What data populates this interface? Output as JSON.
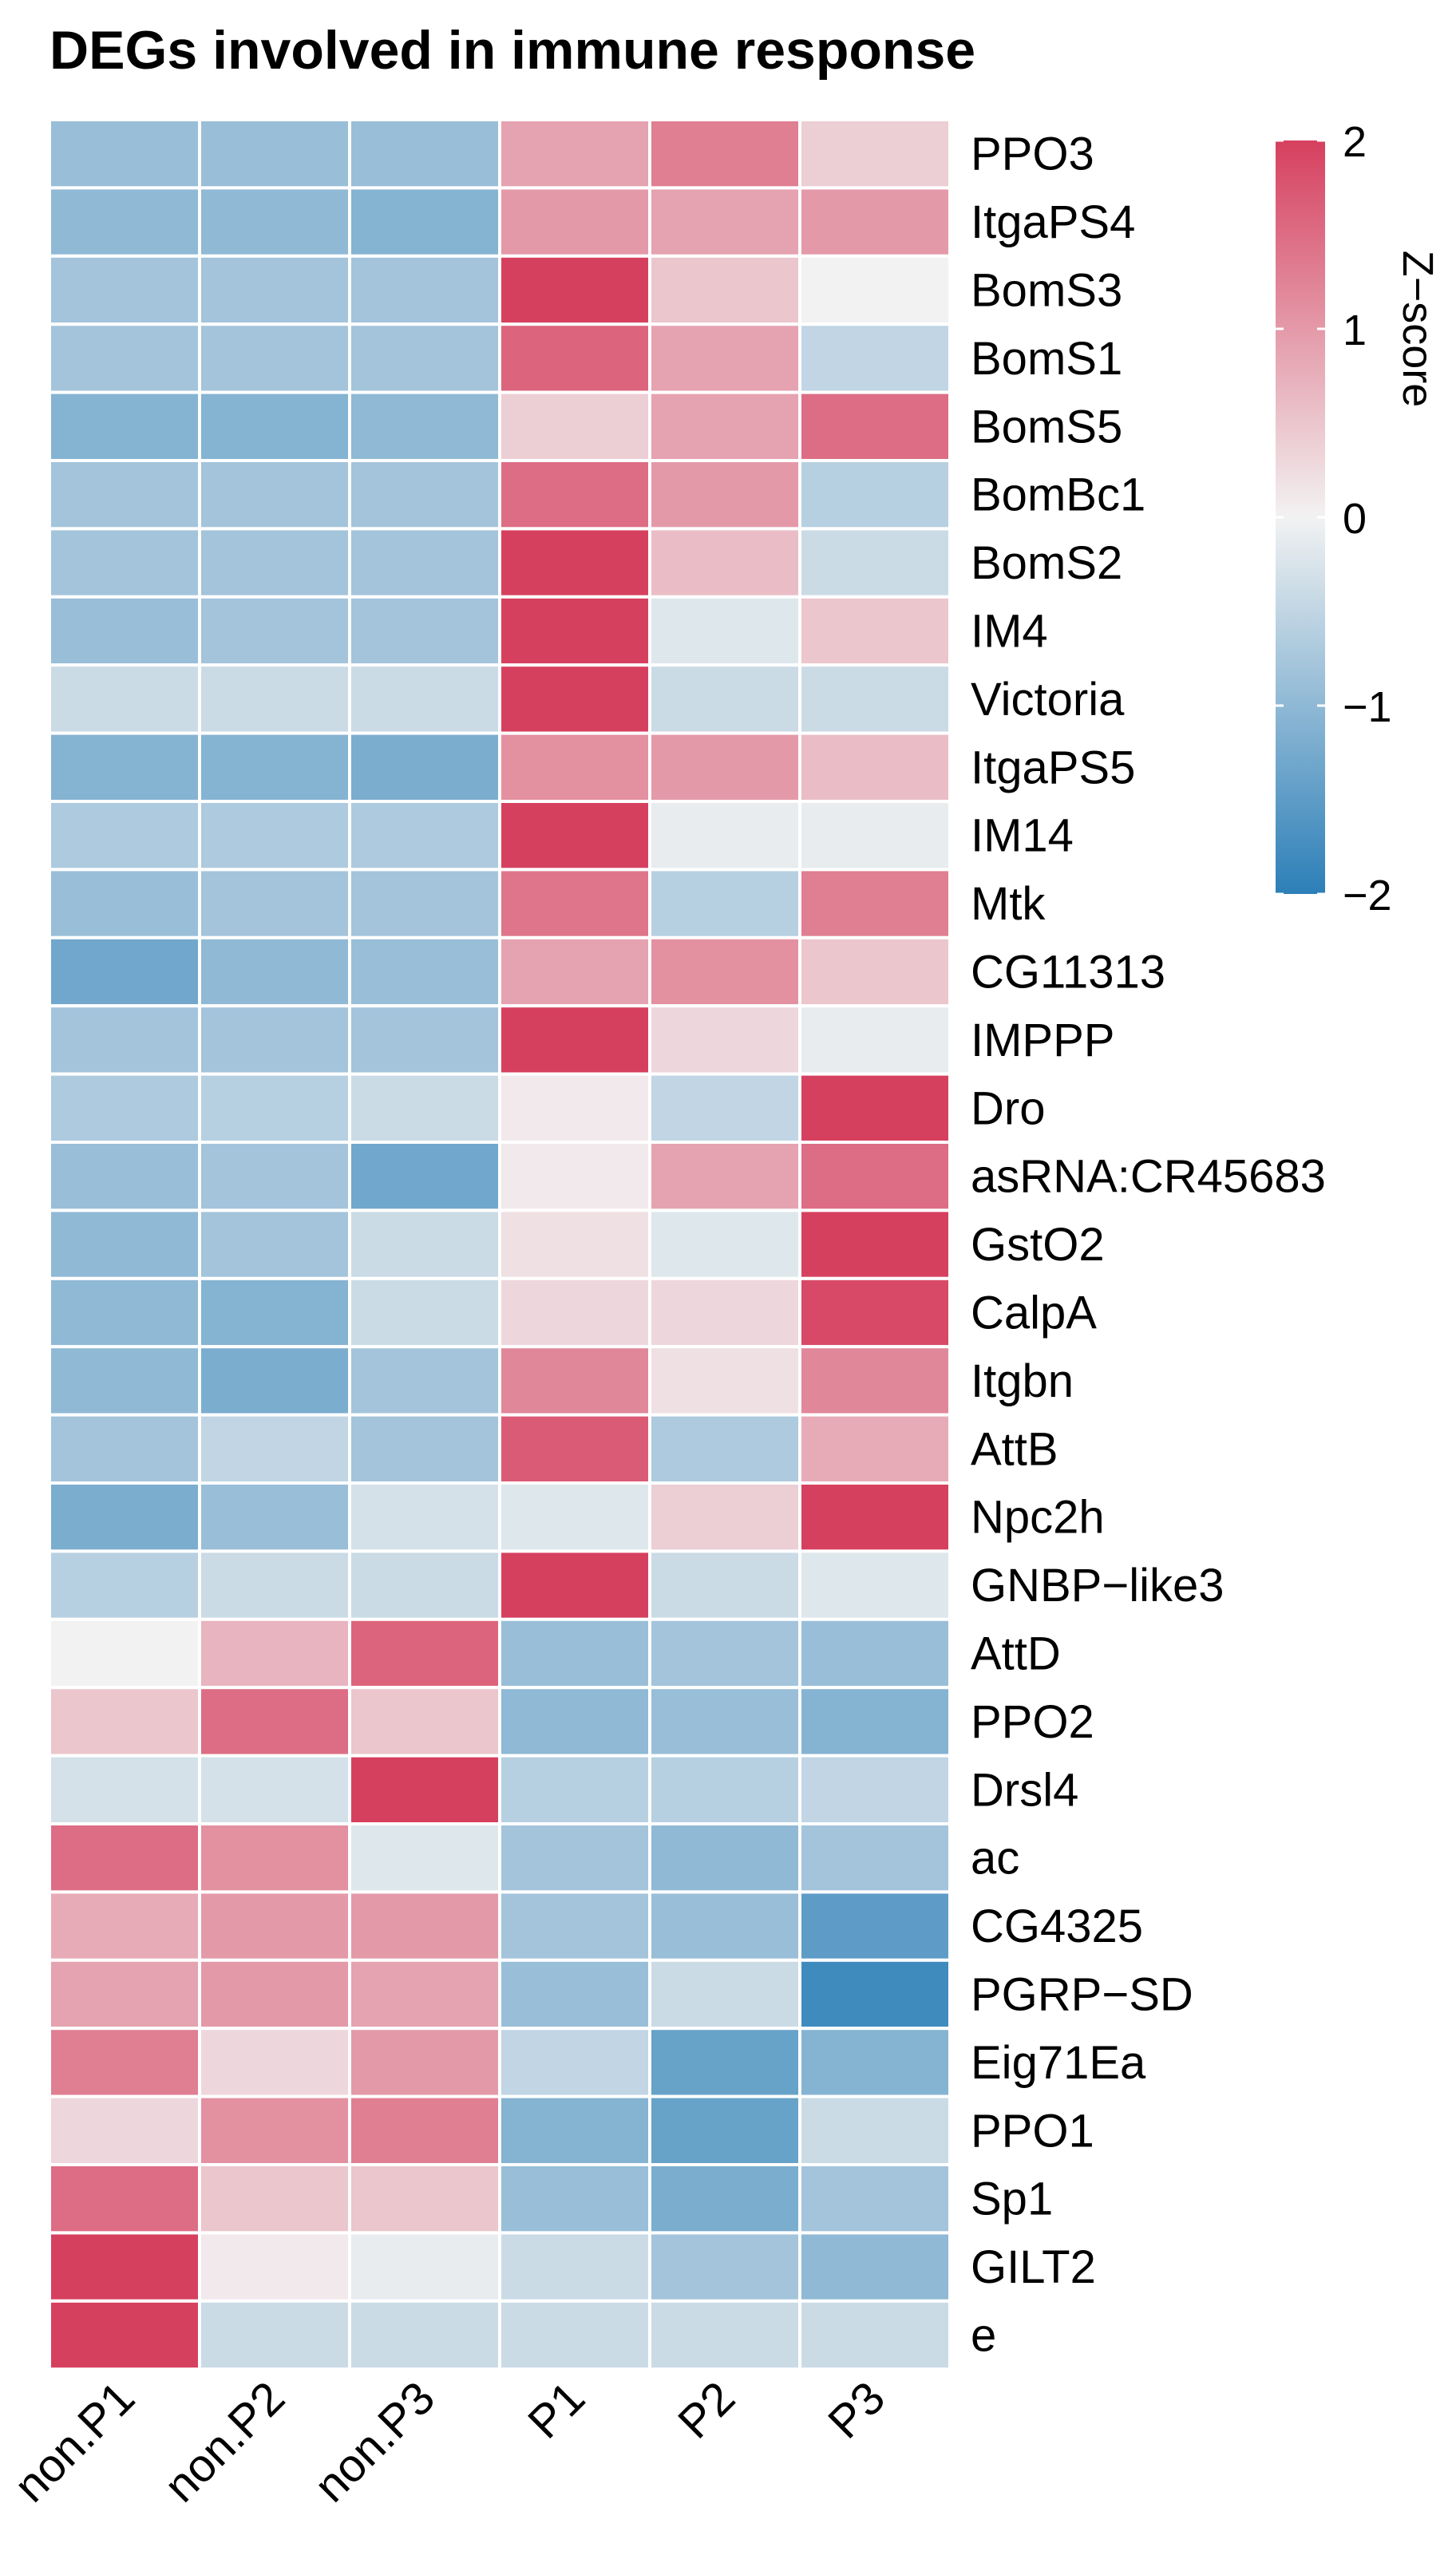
{
  "chart_data": {
    "type": "heatmap",
    "title": "DEGs involved in immune response",
    "columns": [
      "non.P1",
      "non.P2",
      "non.P3",
      "P1",
      "P2",
      "P3"
    ],
    "rows": [
      "PPO3",
      "ItgaPS4",
      "BomS3",
      "BomS1",
      "BomS5",
      "BomBc1",
      "BomS2",
      "IM4",
      "Victoria",
      "ItgaPS5",
      "IM14",
      "Mtk",
      "CG11313",
      "IMPPP",
      "Dro",
      "asRNA:CR45683",
      "GstO2",
      "CalpA",
      "Itgbn",
      "AttB",
      "Npc2h",
      "GNBP−like3",
      "AttD",
      "PPO2",
      "Drsl4",
      "ac",
      "CG4325",
      "PGRP−SD",
      "Eig71Ea",
      "PPO1",
      "Sp1",
      "GILT2",
      "e"
    ],
    "values": [
      [
        -0.9,
        -0.9,
        -0.9,
        0.9,
        1.3,
        0.4
      ],
      [
        -1.0,
        -1.0,
        -1.1,
        1.0,
        0.9,
        1.0
      ],
      [
        -0.8,
        -0.8,
        -0.8,
        2.0,
        0.5,
        0.0
      ],
      [
        -0.8,
        -0.8,
        -0.8,
        1.6,
        0.9,
        -0.5
      ],
      [
        -1.1,
        -1.1,
        -1.0,
        0.4,
        0.9,
        1.5
      ],
      [
        -0.8,
        -0.8,
        -0.8,
        1.5,
        1.0,
        -0.6
      ],
      [
        -0.8,
        -0.8,
        -0.8,
        2.0,
        0.6,
        -0.4
      ],
      [
        -0.9,
        -0.8,
        -0.8,
        2.0,
        -0.2,
        0.5
      ],
      [
        -0.4,
        -0.4,
        -0.4,
        2.0,
        -0.4,
        -0.4
      ],
      [
        -1.1,
        -1.1,
        -1.2,
        1.1,
        1.0,
        0.6
      ],
      [
        -0.7,
        -0.7,
        -0.7,
        2.0,
        -0.1,
        -0.1
      ],
      [
        -0.9,
        -0.8,
        -0.8,
        1.4,
        -0.6,
        1.3
      ],
      [
        -1.3,
        -1.0,
        -0.9,
        0.9,
        1.1,
        0.5
      ],
      [
        -0.8,
        -0.8,
        -0.8,
        2.0,
        0.3,
        -0.1
      ],
      [
        -0.7,
        -0.6,
        -0.4,
        0.1,
        -0.5,
        2.0
      ],
      [
        -0.9,
        -0.8,
        -1.3,
        0.1,
        0.9,
        1.5
      ],
      [
        -1.0,
        -0.8,
        -0.4,
        0.2,
        -0.2,
        2.0
      ],
      [
        -1.0,
        -1.1,
        -0.4,
        0.3,
        0.3,
        1.9
      ],
      [
        -1.0,
        -1.2,
        -0.8,
        1.2,
        0.2,
        1.2
      ],
      [
        -0.8,
        -0.5,
        -0.8,
        1.7,
        -0.7,
        0.8
      ],
      [
        -1.2,
        -0.9,
        -0.3,
        -0.2,
        0.4,
        2.0
      ],
      [
        -0.6,
        -0.4,
        -0.4,
        2.0,
        -0.4,
        -0.2
      ],
      [
        0.0,
        0.7,
        1.6,
        -0.9,
        -0.8,
        -0.9
      ],
      [
        0.5,
        1.5,
        0.5,
        -1.0,
        -0.9,
        -1.1
      ],
      [
        -0.3,
        -0.3,
        2.0,
        -0.6,
        -0.6,
        -0.5
      ],
      [
        1.5,
        1.1,
        -0.2,
        -0.8,
        -1.0,
        -0.8
      ],
      [
        0.8,
        1.0,
        1.0,
        -0.8,
        -0.9,
        -1.5
      ],
      [
        0.9,
        1.0,
        0.9,
        -0.9,
        -0.4,
        -1.8
      ],
      [
        1.3,
        0.3,
        1.0,
        -0.5,
        -1.4,
        -1.1
      ],
      [
        0.3,
        1.1,
        1.3,
        -1.1,
        -1.4,
        -0.4
      ],
      [
        1.5,
        0.5,
        0.5,
        -0.9,
        -1.2,
        -0.8
      ],
      [
        2.0,
        0.1,
        -0.1,
        -0.4,
        -0.8,
        -1.0
      ],
      [
        2.0,
        -0.4,
        -0.4,
        -0.4,
        -0.4,
        -0.4
      ]
    ],
    "colorscale": {
      "min": -2,
      "mid": 0,
      "max": 2,
      "low_color": "#2c7fb8",
      "mid_color": "#f2f2f2",
      "high_color": "#d6405f"
    },
    "legend": {
      "title": "Z−score",
      "ticks": [
        "2",
        "1",
        "0",
        "−1",
        "−2"
      ],
      "position": "top-right"
    }
  }
}
